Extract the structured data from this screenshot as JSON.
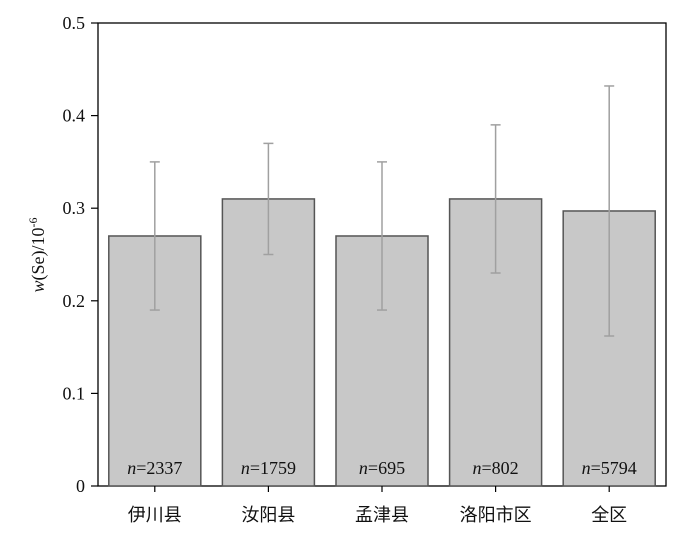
{
  "chart_data": {
    "type": "bar",
    "xlabel": "",
    "ylabel_parts": {
      "w": "w",
      "rest": "(Se)/10",
      "exp": "-6"
    },
    "ylim": [
      0,
      0.5
    ],
    "yticks": [
      "0",
      "0.1",
      "0.2",
      "0.3",
      "0.4",
      "0.5"
    ],
    "categories": [
      "伊川县",
      "汝阳县",
      "孟津县",
      "洛阳市区",
      "全区"
    ],
    "values": [
      0.27,
      0.31,
      0.27,
      0.31,
      0.297
    ],
    "error_low": [
      0.19,
      0.25,
      0.19,
      0.23,
      0.162
    ],
    "error_high": [
      0.35,
      0.37,
      0.35,
      0.39,
      0.432
    ],
    "sample_sizes": [
      "2337",
      "1759",
      "695",
      "802",
      "5794"
    ],
    "n_symbol": "n",
    "grid": false,
    "colors": {
      "bar_fill": "#c8c8c8",
      "bar_stroke": "#555555",
      "error_bar": "#a0a0a0",
      "axis": "#000000"
    }
  }
}
